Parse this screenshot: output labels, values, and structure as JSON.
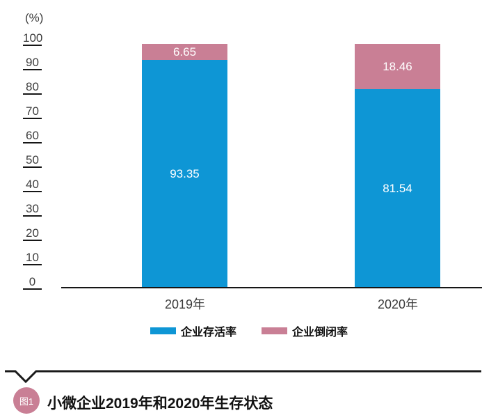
{
  "chart": {
    "unit_label": "(%)"
  },
  "legend": [
    {
      "label": "企业存活率",
      "color": "#0E96D5"
    },
    {
      "label": "企业倒闭率",
      "color": "#C97F95"
    }
  ],
  "caption": {
    "badge": "图1",
    "title": "小微企业2019年和2020年生存状态",
    "badge_color": "#C97F95",
    "line_color": "#1a1a1a"
  },
  "chart_data": {
    "type": "bar",
    "stacked": true,
    "categories": [
      "2019年",
      "2020年"
    ],
    "series": [
      {
        "name": "企业存活率",
        "values": [
          93.35,
          81.54
        ],
        "value_labels": [
          "93.35",
          "81.54"
        ],
        "color": "#0E96D5"
      },
      {
        "name": "企业倒闭率",
        "values": [
          6.65,
          18.46
        ],
        "value_labels": [
          "6.65",
          "18.46"
        ],
        "color": "#C97F95"
      }
    ],
    "ylabel": "(%)",
    "ylim": [
      0,
      100
    ],
    "yticks": [
      100,
      90,
      80,
      70,
      60,
      50,
      40,
      30,
      20,
      10,
      0
    ],
    "grid": false,
    "legend_position": "bottom",
    "value_label_color": "#ffffff",
    "title": "图1 小微企业2019年和2020年生存状态"
  }
}
